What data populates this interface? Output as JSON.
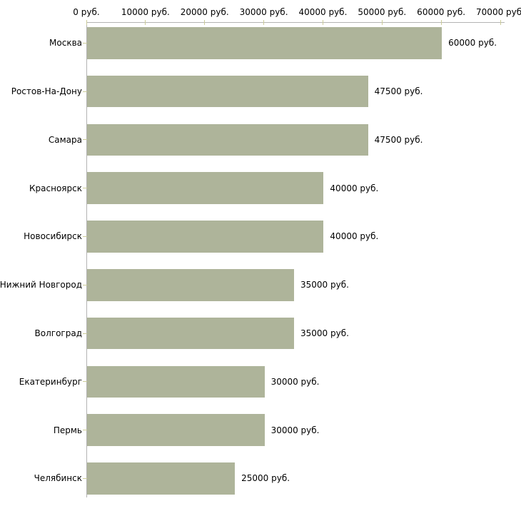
{
  "chart_data": {
    "type": "bar",
    "orientation": "horizontal",
    "title": "",
    "xlabel": "",
    "ylabel": "",
    "categories": [
      "Москва",
      "Ростов-На-Дону",
      "Самара",
      "Красноярск",
      "Новосибирск",
      "Нижний Новгород",
      "Волгоград",
      "Екатеринбург",
      "Пермь",
      "Челябинск"
    ],
    "values": [
      60000,
      47500,
      47500,
      40000,
      40000,
      35000,
      35000,
      30000,
      30000,
      25000
    ],
    "value_labels": [
      "60000 руб.",
      "47500 руб.",
      "47500 руб.",
      "40000 руб.",
      "40000 руб.",
      "35000 руб.",
      "35000 руб.",
      "30000 руб.",
      "30000 руб.",
      "25000 руб."
    ],
    "unit_suffix": "руб.",
    "xlim": [
      0,
      70000
    ],
    "xticks": [
      0,
      10000,
      20000,
      30000,
      40000,
      50000,
      60000,
      70000
    ],
    "xtick_labels": [
      "0 руб.",
      "10000 руб.",
      "20000 руб.",
      "30000 руб.",
      "40000 руб.",
      "50000 руб.",
      "60000 руб.",
      "70000 руб."
    ],
    "axis_position": "top",
    "grid": false,
    "legend": null,
    "colors": {
      "bar_fill": "#aeb49a",
      "axis_line": "#b3b3b3",
      "tick_mark": "#cccc99",
      "text": "#000000",
      "background": "#ffffff"
    }
  }
}
